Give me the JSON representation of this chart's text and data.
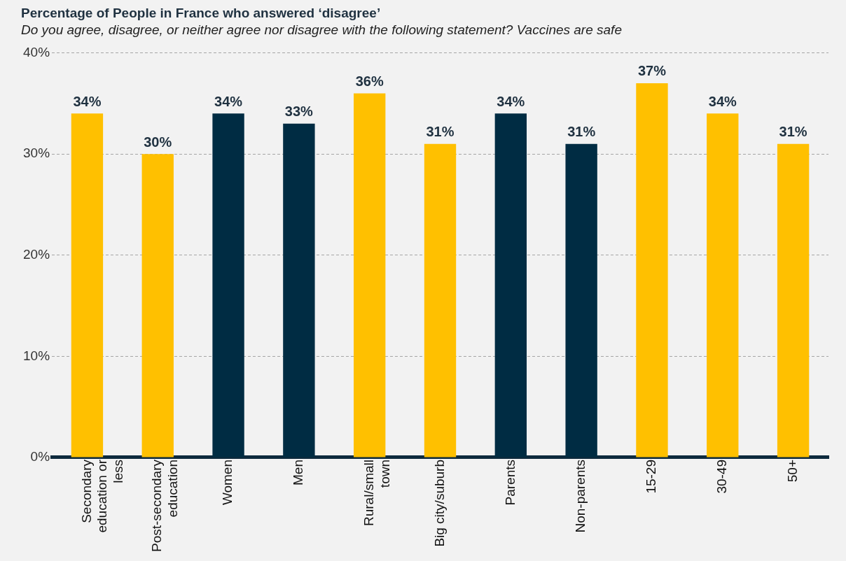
{
  "chart_data": {
    "type": "bar",
    "title": "Percentage of People in France who answered ‘disagree’",
    "subtitle": "Do you agree, disagree, or neither agree nor disagree with the following statement? Vaccines are safe",
    "categories": [
      "Secondary education or less",
      "Post-secondary education",
      "Women",
      "Men",
      "Rural/small town",
      "Big city/suburb",
      "Parents",
      "Non-parents",
      "15-29",
      "30-49",
      "50+"
    ],
    "values": [
      34,
      30,
      34,
      33,
      36,
      31,
      34,
      31,
      37,
      34,
      31
    ],
    "colors": [
      "#ffc000",
      "#ffc000",
      "#002c43",
      "#002c43",
      "#ffc000",
      "#ffc000",
      "#002c43",
      "#002c43",
      "#ffc000",
      "#ffc000",
      "#ffc000"
    ],
    "value_labels": [
      "34%",
      "30%",
      "34%",
      "33%",
      "36%",
      "31%",
      "34%",
      "31%",
      "37%",
      "34%",
      "31%"
    ],
    "ylim": [
      0,
      40
    ],
    "yticks": [
      {
        "value": 0,
        "label": "0%"
      },
      {
        "value": 10,
        "label": "10%"
      },
      {
        "value": 20,
        "label": "20%"
      },
      {
        "value": 30,
        "label": "30%"
      },
      {
        "value": 40,
        "label": "40%"
      }
    ],
    "grid": "y",
    "legend": false
  }
}
